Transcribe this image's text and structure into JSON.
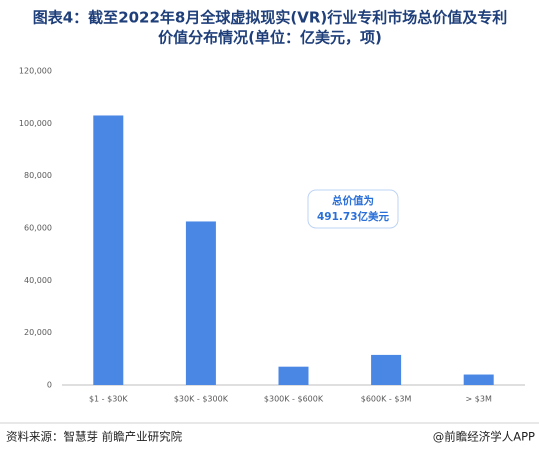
{
  "chart_data": {
    "type": "bar",
    "title": [
      "图表4：截至2022年8月全球虚拟现实(VR)行业专利市场总价值及专利",
      "价值分布情况(单位：亿美元，项)"
    ],
    "categories": [
      "$1 - $30K",
      "$30K - $300K",
      "$300K - $600K",
      "$600K - $3M",
      "> $3M"
    ],
    "values": [
      103000,
      62500,
      7000,
      11500,
      4000
    ],
    "color": "#4a86e4",
    "ylim": [
      0,
      120000
    ],
    "yticks": [
      0,
      {
        "value": 20000,
        "label": "20,000"
      },
      {
        "value": 40000,
        "label": "40,000"
      },
      {
        "value": 60000,
        "label": "60,000"
      },
      {
        "value": 80000,
        "label": "80,000"
      },
      {
        "value": 100000,
        "label": "100,000"
      },
      {
        "value": 120000,
        "label": "120,000"
      }
    ],
    "grid": false,
    "annotation": [
      "总价值为",
      "491.73亿美元"
    ],
    "source": "资料来源：智慧芽 前瞻产业研究院",
    "credit": "@前瞻经济学人APP"
  }
}
